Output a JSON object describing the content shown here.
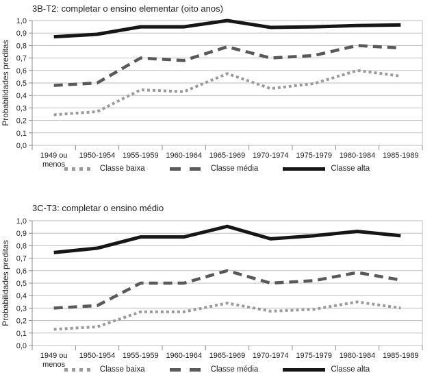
{
  "page": {
    "background": "#ffffff",
    "text_color": "#1f1f1f",
    "grid_color": "#bdbdbd",
    "axis_color": "#8c8c8c"
  },
  "chart_data": [
    {
      "type": "line",
      "title": "3B-T2: completar o ensino elementar (oito anos)",
      "xlabel": "",
      "ylabel": "Probabilidades preditas",
      "ylim": [
        0,
        1
      ],
      "grid": true,
      "legend_position": "bottom",
      "yticks": [
        0,
        0.1,
        0.2,
        0.3,
        0.4,
        0.5,
        0.6,
        0.7,
        0.8,
        0.9,
        1.0
      ],
      "ytick_labels": [
        "0,0",
        "0,1",
        "0,2",
        "0,3",
        "0,4",
        "0,5",
        "0,6",
        "0,7",
        "0,8",
        "0,9",
        "1,0"
      ],
      "categories": [
        "1949 ou\nmenos",
        "1950-1954",
        "1955-1959",
        "1960-1964",
        "1965-1969",
        "1970-1974",
        "1975-1979",
        "1980-1984",
        "1985-1989"
      ],
      "series": [
        {
          "name": "Classe baixa",
          "style": "dotted",
          "color": "#9a9a9a",
          "values": [
            0.245,
            0.27,
            0.445,
            0.43,
            0.575,
            0.455,
            0.495,
            0.6,
            0.555
          ]
        },
        {
          "name": "Classe média",
          "style": "dashed",
          "color": "#595959",
          "values": [
            0.48,
            0.5,
            0.7,
            0.68,
            0.79,
            0.7,
            0.72,
            0.8,
            0.78
          ]
        },
        {
          "name": "Classe alta",
          "style": "solid",
          "color": "#161616",
          "values": [
            0.87,
            0.89,
            0.95,
            0.95,
            1.0,
            0.945,
            0.95,
            0.96,
            0.965
          ]
        }
      ]
    },
    {
      "type": "line",
      "title": "3C-T3: completar o ensino médio",
      "xlabel": "",
      "ylabel": "Probabilidades preditas",
      "ylim": [
        0,
        1
      ],
      "grid": true,
      "legend_position": "bottom",
      "yticks": [
        0,
        0.1,
        0.2,
        0.3,
        0.4,
        0.5,
        0.6,
        0.7,
        0.8,
        0.9,
        1.0
      ],
      "ytick_labels": [
        "0,0",
        "0,1",
        "0,2",
        "0,3",
        "0,4",
        "0,5",
        "0,6",
        "0,7",
        "0,8",
        "0,9",
        "1,0"
      ],
      "categories": [
        "1949 ou\nmenos",
        "1950-1954",
        "1955-1959",
        "1960-1964",
        "1965-1969",
        "1970-1974",
        "1975-1979",
        "1980-1984",
        "1985-1989"
      ],
      "series": [
        {
          "name": "Classe baixa",
          "style": "dotted",
          "color": "#9a9a9a",
          "values": [
            0.13,
            0.15,
            0.27,
            0.27,
            0.34,
            0.275,
            0.29,
            0.35,
            0.3
          ]
        },
        {
          "name": "Classe média",
          "style": "dashed",
          "color": "#595959",
          "values": [
            0.3,
            0.32,
            0.5,
            0.5,
            0.6,
            0.5,
            0.52,
            0.585,
            0.525
          ]
        },
        {
          "name": "Classe alta",
          "style": "solid",
          "color": "#161616",
          "values": [
            0.745,
            0.78,
            0.87,
            0.87,
            0.955,
            0.855,
            0.88,
            0.915,
            0.88
          ]
        }
      ]
    }
  ]
}
